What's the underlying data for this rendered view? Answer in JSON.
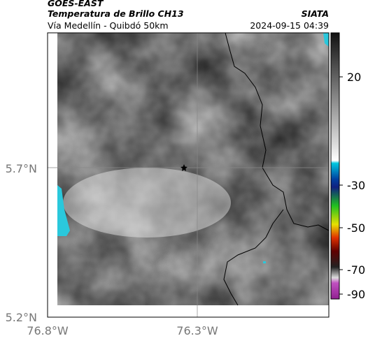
{
  "header": {
    "source": "GOES-EAST",
    "title": "Temperatura de Brillo CH13",
    "subtitle": "Vía Medellín - Quibdó 50km",
    "org": "SIATA",
    "timestamp": "2024-09-15 04:39"
  },
  "map": {
    "lat_ticks": [
      "5.7°N",
      "5.2°N"
    ],
    "lon_ticks": [
      "76.8°W",
      "76.3°W"
    ]
  },
  "colorbar": {
    "ticks": [
      20,
      -30,
      -50,
      -70,
      -90
    ]
  }
}
